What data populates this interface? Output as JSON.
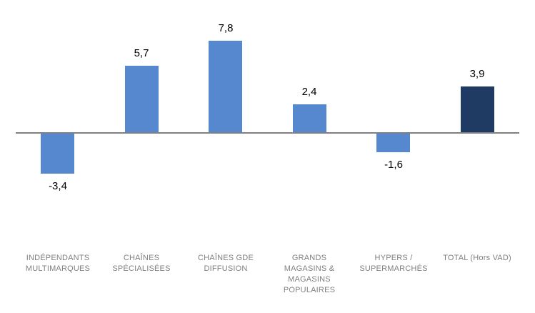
{
  "chart_data": {
    "type": "bar",
    "title": "",
    "xlabel": "",
    "ylabel": "",
    "categories": [
      "INDÉPENDANTS MULTIMARQUES",
      "CHAÎNES SPÉCIALISÉES",
      "CHAÎNES GDE DIFFUSION",
      "GRANDS MAGASINS & MAGASINS POPULAIRES",
      "HYPERS / SUPERMARCHÉS",
      "TOTAL (Hors VAD)"
    ],
    "category_lines": [
      [
        "INDÉPENDANTS",
        "MULTIMARQUES"
      ],
      [
        "CHAÎNES",
        "SPÉCIALISÉES"
      ],
      [
        "CHAÎNES GDE",
        "DIFFUSION"
      ],
      [
        "GRANDS",
        "MAGASINS &",
        "MAGASINS",
        "POPULAIRES"
      ],
      [
        "HYPERS /",
        "SUPERMARCHÉS"
      ],
      [
        "TOTAL (Hors VAD)"
      ]
    ],
    "values": [
      -3.4,
      5.7,
      7.8,
      2.4,
      -1.6,
      3.9
    ],
    "value_labels": [
      "-3,4",
      "5,7",
      "7,8",
      "2,4",
      "-1,6",
      "3,9"
    ],
    "bar_colors": [
      "#5588CE",
      "#5588CE",
      "#5588CE",
      "#5588CE",
      "#5588CE",
      "#1F3B63"
    ],
    "colors": {
      "bar_default": "#5588CE",
      "bar_total": "#1F3B63",
      "axis_line": "#808080",
      "category_label": "#808080",
      "value_label": "#000000",
      "background": "#FFFFFF"
    },
    "axis": {
      "baseline_value": 0,
      "gridlines": false,
      "y_axis_visible": false,
      "x_axis_visible": true,
      "data_labels_visible": true,
      "legend_position": "none"
    }
  }
}
